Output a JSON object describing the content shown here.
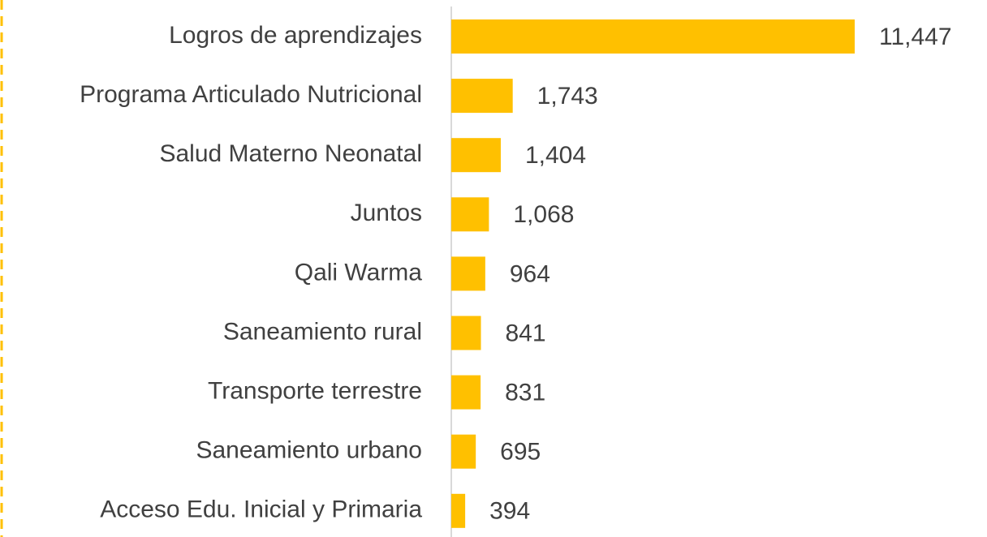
{
  "chart_data": {
    "type": "bar",
    "orientation": "horizontal",
    "color": "#ffc000",
    "categories": [
      "Logros de aprendizajes",
      "Programa Articulado Nutricional",
      "Salud Materno Neonatal",
      "Juntos",
      "Qali Warma",
      "Saneamiento rural",
      "Transporte terrestre",
      "Saneamiento urbano",
      "Acceso Edu. Inicial y Primaria"
    ],
    "values": [
      11447,
      1743,
      1404,
      1068,
      964,
      841,
      831,
      695,
      394
    ],
    "value_labels": [
      "11,447",
      "1,743",
      "1,404",
      "1,068",
      "964",
      "841",
      "831",
      "695",
      "394"
    ]
  }
}
